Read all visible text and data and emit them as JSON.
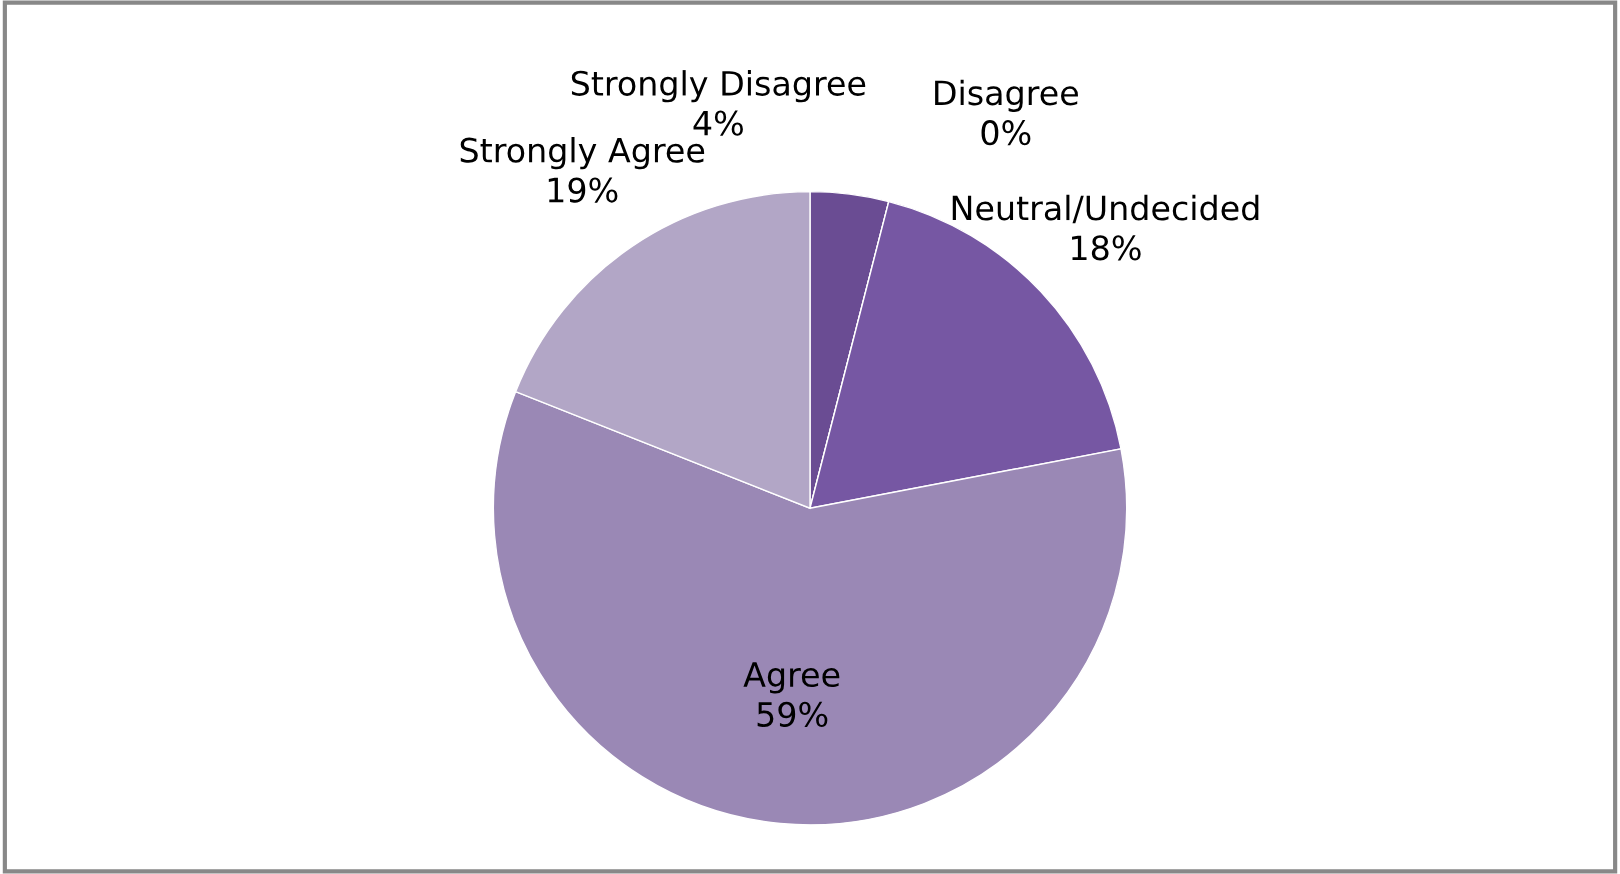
{
  "chart_data": {
    "type": "pie",
    "categories": [
      "Strongly Disagree",
      "Disagree",
      "Neutral/Undecided",
      "Agree",
      "Strongly Agree"
    ],
    "values": [
      4,
      0,
      18,
      59,
      19
    ],
    "colors": [
      "#6a4c93",
      "#6e5098",
      "#7657a3",
      "#9a88b5",
      "#b2a6c6"
    ],
    "value_labels": [
      "4%",
      "0%",
      "18%",
      "59%",
      "19%"
    ]
  }
}
